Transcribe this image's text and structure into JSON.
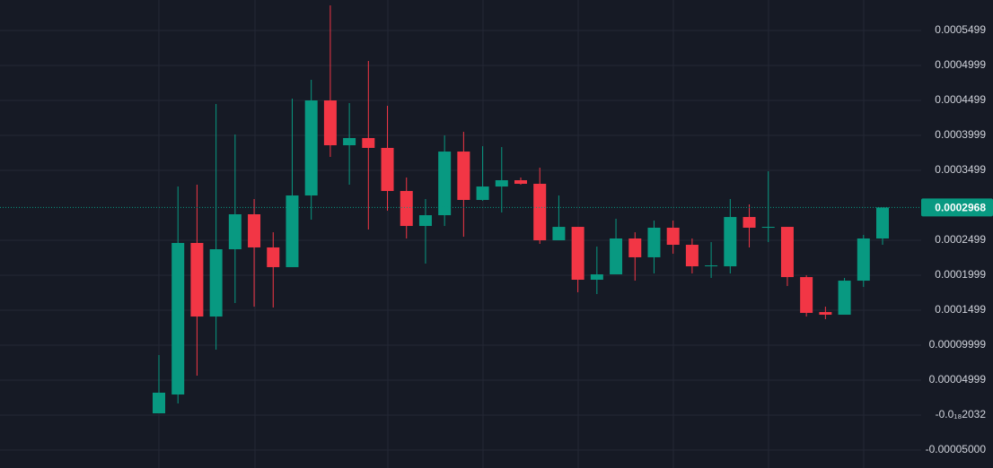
{
  "chart_data": {
    "type": "candlestick",
    "open": [
      2.5e-06,
      2.94e-05,
      0.0002461,
      0.0001409,
      0.0002371,
      0.0002871,
      0.0002397,
      0.0002115,
      0.000314,
      0.0004499,
      0.0003858,
      0.0003961,
      0.000382,
      0.0003204,
      0.0002704,
      0.0002858,
      0.0003768,
      0.0003076,
      0.0003268,
      0.0003358,
      0.0003307,
      0.0002499,
      0.0002691,
      0.0001935,
      0.0002012,
      0.0002525,
      0.0002256,
      0.0002679,
      0.0002435,
      0.0002127,
      0.0002127,
      0.0002832,
      0.0002679,
      0.0002691,
      0.0001973,
      0.0001473,
      0.0001435,
      0.0001922,
      0.0002525
    ],
    "high": [
      8.58e-05,
      0.0003268,
      0.0003294,
      0.0004448,
      0.0004012,
      0.0003089,
      0.0002614,
      0.0004525,
      0.0004794,
      0.0005858,
      0.0004461,
      0.0005063,
      0.0004422,
      0.0003397,
      0.0003089,
      0.0003999,
      0.000405,
      0.0003845,
      0.0003832,
      0.0003397,
      0.0003538,
      0.000314,
      0.0002691,
      0.0002409,
      0.0002807,
      0.0002614,
      0.0002781,
      0.0002781,
      0.0002525,
      0.0002473,
      0.0003089,
      0.0003012,
      0.0003486,
      0.0002691,
      0.0001999,
      0.000155,
      0.0001961,
      0.0002576,
      0.0002968
    ],
    "low": [
      2.5e-06,
      1.66e-05,
      5.63e-05,
      9.35e-05,
      0.0001602,
      0.000155,
      0.0001538,
      0.0002115,
      0.0002794,
      0.0003691,
      0.0003294,
      0.0002653,
      0.0002922,
      0.0002525,
      0.0002166,
      0.0002704,
      0.000255,
      0.0003063,
      0.0002897,
      0.0003294,
      0.0002448,
      0.0002499,
      0.0001756,
      0.000173,
      0.0002012,
      0.0001922,
      0.0002025,
      0.0002307,
      0.0002025,
      0.0001961,
      0.0002025,
      0.0002397,
      0.0002473,
      0.0001845,
      0.0001409,
      0.0001371,
      0.0001435,
      0.0001832,
      0.0002435
    ],
    "close": [
      3.2e-05,
      0.0002461,
      0.0001409,
      0.0002371,
      0.0002871,
      0.0002397,
      0.0002115,
      0.000314,
      0.0004499,
      0.0003858,
      0.0003961,
      0.000382,
      0.0003204,
      0.0002704,
      0.0002858,
      0.0003768,
      0.0003076,
      0.0003268,
      0.0003358,
      0.0003307,
      0.0002499,
      0.0002691,
      0.0001935,
      0.0002012,
      0.0002525,
      0.0002256,
      0.0002679,
      0.0002435,
      0.0002127,
      0.000214,
      0.0002832,
      0.0002679,
      0.0002691,
      0.0001973,
      0.0001461,
      0.0001435,
      0.0001922,
      0.0002525,
      0.0002968
    ],
    "up_color": "#089981",
    "down_color": "#f23645",
    "last_price": 0.0002968,
    "ylim": [
      -7.57e-05,
      0.0005935
    ],
    "yticks": [
      0.0005499,
      0.0004999,
      0.0004499,
      0.0003999,
      0.0003499,
      0.0002499,
      0.0001999,
      0.0001499,
      9.999e-05,
      4.999e-05,
      {
        "value": -2.032e-19,
        "label": "-0.0₁₈2032"
      },
      {
        "value": -5e-05,
        "label": "-0.00005000"
      }
    ],
    "grid": true
  }
}
